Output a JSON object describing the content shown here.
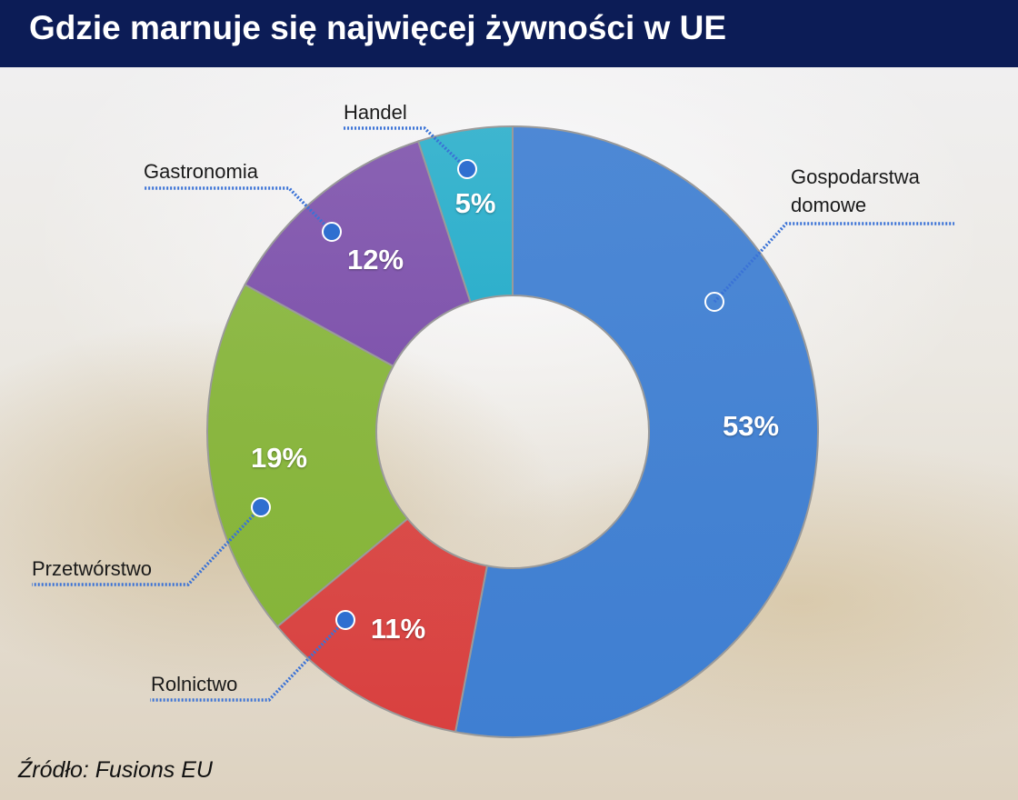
{
  "title": "Gdzie marnuje się najwięcej żywności w UE",
  "source": "Źródło: Fusions EU",
  "chart_data": {
    "type": "pie",
    "subtype": "donut",
    "unit": "%",
    "start": "top, clockwise",
    "slices": [
      {
        "label_lines": [
          "Gospodarstwa",
          "domowe"
        ],
        "value": 53,
        "value_label": "53%",
        "color": "#3f7fd2"
      },
      {
        "label_lines": [
          "Rolnictwo"
        ],
        "value": 11,
        "value_label": "11%",
        "color": "#d9403f"
      },
      {
        "label_lines": [
          "Przetwórstwo"
        ],
        "value": 19,
        "value_label": "19%",
        "color": "#86b53a"
      },
      {
        "label_lines": [
          "Gastronomia"
        ],
        "value": 12,
        "value_label": "12%",
        "color": "#8055ad"
      },
      {
        "label_lines": [
          "Handel"
        ],
        "value": 5,
        "value_label": "5%",
        "color": "#2eb0cc"
      }
    ]
  }
}
